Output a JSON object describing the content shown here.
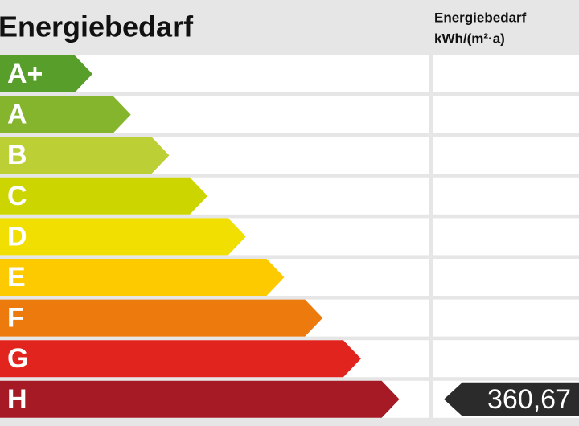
{
  "header": {
    "title": "Energiebedarf",
    "column_title": [
      "Energiebedarf",
      "kWh/(m²·a)"
    ]
  },
  "classes": [
    {
      "label": "A+",
      "color": "#579e2b"
    },
    {
      "label": "A",
      "color": "#84b52d"
    },
    {
      "label": "B",
      "color": "#bccf35"
    },
    {
      "label": "C",
      "color": "#cdd500"
    },
    {
      "label": "D",
      "color": "#f0df00"
    },
    {
      "label": "E",
      "color": "#fdca00"
    },
    {
      "label": "F",
      "color": "#ec7a0c"
    },
    {
      "label": "G",
      "color": "#e2241f"
    },
    {
      "label": "H",
      "color": "#a51a24"
    }
  ],
  "indicator": {
    "class": "H",
    "label": "360,67",
    "color": "#2b2b2b"
  }
}
